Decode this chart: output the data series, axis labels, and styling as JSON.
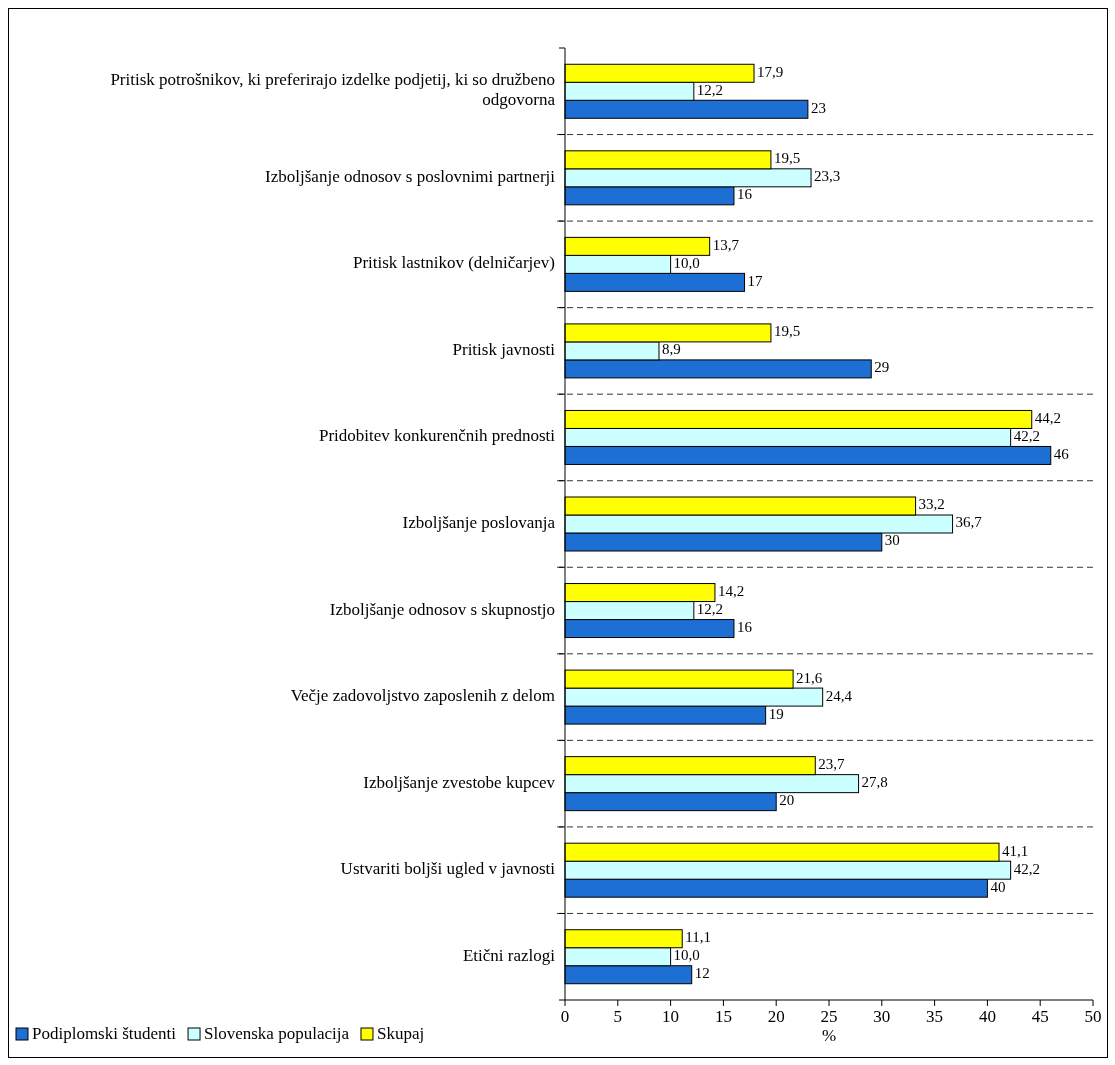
{
  "chart_data": {
    "type": "bar",
    "orientation": "horizontal",
    "xlabel": "%",
    "categories": [
      "Pritisk potrošnikov, ki preferirajo izdelke podjetij, ki so družbeno odgovorna",
      "Izboljšanje odnosov s poslovnimi partnerji",
      "Pritisk lastnikov (delničarjev)",
      "Pritisk javnosti",
      "Pridobitev konkurenčnih prednosti",
      "Izboljšanje poslovanja",
      "Izboljšanje odnosov s skupnostjo",
      "Večje zadovoljstvo zaposlenih z delom",
      "Izboljšanje zvestobe kupcev",
      "Ustvariti boljši ugled v javnosti",
      "Etični razlogi"
    ],
    "series": [
      {
        "name": "Podiplomski študenti",
        "color": "#1e6fd4",
        "values": [
          23,
          16,
          17,
          29,
          46,
          30,
          16,
          19,
          20,
          40,
          12
        ],
        "value_labels": [
          "23",
          "16",
          "17",
          "29",
          "46",
          "30",
          "16",
          "19",
          "20",
          "40",
          "12"
        ]
      },
      {
        "name": "Slovenska populacija",
        "color": "#ccffff",
        "values": [
          12.2,
          23.3,
          10.0,
          8.9,
          42.2,
          36.7,
          12.2,
          24.4,
          27.8,
          42.2,
          10.0
        ],
        "value_labels": [
          "12,2",
          "23,3",
          "10,0",
          "8,9",
          "42,2",
          "36,7",
          "12,2",
          "24,4",
          "27,8",
          "42,2",
          "10,0"
        ]
      },
      {
        "name": "Skupaj",
        "color": "#ffff00",
        "values": [
          17.9,
          19.5,
          13.7,
          19.5,
          44.2,
          33.2,
          14.2,
          21.6,
          23.7,
          41.1,
          11.1
        ],
        "value_labels": [
          "17,9",
          "19,5",
          "13,7",
          "19,5",
          "44,2",
          "33,2",
          "14,2",
          "21,6",
          "23,7",
          "41,1",
          "11,1"
        ]
      }
    ],
    "xlim": [
      0,
      50
    ],
    "xticks": [
      0,
      5,
      10,
      15,
      20,
      25,
      30,
      35,
      40,
      45,
      50
    ],
    "grid": "y",
    "legend": "bottom"
  }
}
